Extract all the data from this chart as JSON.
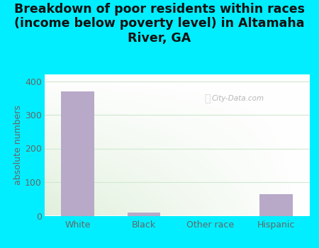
{
  "categories": [
    "White",
    "Black",
    "Other race",
    "Hispanic"
  ],
  "values": [
    370,
    10,
    0,
    65
  ],
  "bar_color": "#b8a9c9",
  "title": "Breakdown of poor residents within races\n(income below poverty level) in Altamaha\nRiver, GA",
  "ylabel": "absolute numbers",
  "ylim": [
    0,
    420
  ],
  "yticks": [
    0,
    100,
    200,
    300,
    400
  ],
  "background_color": "#00eeff",
  "plot_bg_color_tl": "#e8f5e0",
  "plot_bg_color_tr": "#f8fffa",
  "plot_bg_color_bl": "#d8f0d0",
  "plot_bg_color_br": "#ffffff",
  "grid_color": "#d0e8d0",
  "watermark": "City-Data.com",
  "title_fontsize": 12.5,
  "ylabel_fontsize": 9,
  "tick_fontsize": 9,
  "tick_color": "#666666",
  "title_color": "#111111"
}
